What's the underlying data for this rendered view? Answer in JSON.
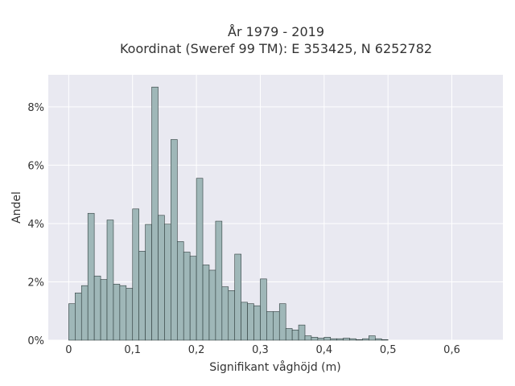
{
  "chart_data": {
    "type": "bar",
    "title_line1": "År 1979 - 2019",
    "title_line2": "Koordinat (Sweref 99 TM): E 353425, N 6252782",
    "xlabel": "Signifikant våghöjd (m)",
    "ylabel": "Andel",
    "xlim": [
      -0.032,
      0.68
    ],
    "ylim": [
      0,
      9.1
    ],
    "x_ticks": [
      0,
      0.1,
      0.2,
      0.3,
      0.4,
      0.5,
      0.6
    ],
    "x_tick_labels": [
      "0",
      "0,1",
      "0,2",
      "0,3",
      "0,4",
      "0,5",
      "0,6"
    ],
    "y_ticks": [
      0,
      2,
      4,
      6,
      8
    ],
    "y_tick_labels": [
      "0%",
      "2%",
      "4%",
      "6%",
      "8%"
    ],
    "grid": true,
    "bin_width": 0.01,
    "bin_start": 0,
    "values": [
      1.25,
      1.62,
      1.87,
      4.35,
      2.2,
      2.08,
      4.12,
      1.92,
      1.87,
      1.78,
      4.5,
      3.05,
      3.97,
      8.68,
      4.28,
      3.98,
      6.88,
      3.38,
      3.02,
      2.88,
      5.55,
      2.58,
      2.4,
      4.08,
      1.83,
      1.7,
      2.95,
      1.3,
      1.25,
      1.18,
      2.1,
      0.98,
      0.98,
      1.25,
      0.4,
      0.35,
      0.52,
      0.15,
      0.1,
      0.07,
      0.1,
      0.05,
      0.05,
      0.07,
      0.05,
      0.02,
      0.05,
      0.15,
      0.05,
      0.02
    ],
    "colors": {
      "bar_fill": "#9fb7b8",
      "bar_edge": "#2f3d3d",
      "plot_bg": "#e9e9f1",
      "grid": "#ffffff",
      "text": "#333333"
    }
  }
}
